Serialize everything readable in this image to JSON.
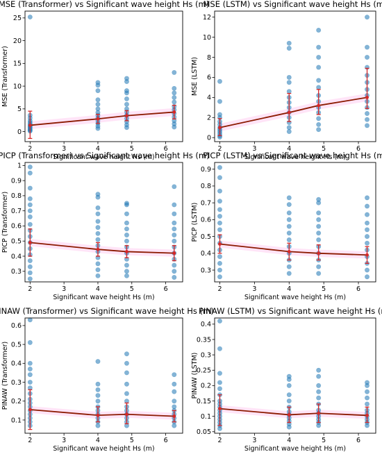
{
  "colors": {
    "points": "#1f77b4",
    "trend_line": "#8b1a00",
    "error_bars": "#d62728",
    "band": "#ff69d2",
    "axis": "#000000"
  },
  "chart_data": [
    {
      "type": "scatter",
      "title": "MSE (Transformer) vs Significant wave height Hs (m)",
      "xlabel": "Significant wave height Hs (m)",
      "ylabel": "MSE (Transformer)",
      "xlim": [
        1.85,
        6.5
      ],
      "ylim": [
        -2.2,
        26.5
      ],
      "xticks": [
        2,
        3,
        4,
        5,
        6
      ],
      "yticks": [
        0,
        5,
        10,
        15,
        20,
        25
      ],
      "points": [
        {
          "x": 2,
          "values": [
            0.1,
            0.3,
            0.5,
            0.8,
            1.0,
            1.3,
            1.6,
            2.0,
            2.4,
            3.0,
            3.6,
            25.2
          ]
        },
        {
          "x": 4,
          "values": [
            0.7,
            1.2,
            1.8,
            2.4,
            3.0,
            3.6,
            4.2,
            5.0,
            6.0,
            7.0,
            9.0,
            10.2,
            10.8
          ]
        },
        {
          "x": 4.85,
          "values": [
            0.9,
            1.5,
            2.2,
            2.9,
            3.6,
            4.3,
            5.0,
            6.0,
            7.2,
            8.5,
            9.0,
            11.0,
            11.7
          ]
        },
        {
          "x": 6.25,
          "values": [
            1.0,
            1.7,
            2.4,
            3.2,
            4.0,
            4.8,
            5.5,
            6.5,
            7.5,
            8.5,
            9.5,
            13.0
          ]
        }
      ],
      "trend": {
        "x": [
          2,
          4,
          4.85,
          6.25
        ],
        "y": [
          1.4,
          2.8,
          3.5,
          4.3
        ]
      },
      "error_bars": [
        {
          "x": 2,
          "low": -1.5,
          "high": 4.5
        },
        {
          "x": 4,
          "low": 1.8,
          "high": 3.8
        },
        {
          "x": 4.85,
          "low": 2.4,
          "high": 4.6
        },
        {
          "x": 6.25,
          "low": 2.8,
          "high": 5.8
        }
      ]
    },
    {
      "type": "scatter",
      "title": "MSE (LSTM) vs Significant wave height Hs (m)",
      "xlabel": "Significant wave height Hs (m)",
      "ylabel": "MSE (LSTM)",
      "xlim": [
        1.85,
        6.5
      ],
      "ylim": [
        -0.4,
        12.6
      ],
      "xticks": [
        2,
        3,
        4,
        5,
        6
      ],
      "yticks": [
        0,
        2,
        4,
        6,
        8,
        10,
        12
      ],
      "points": [
        {
          "x": 2,
          "values": [
            0.05,
            0.2,
            0.4,
            0.6,
            0.8,
            1.0,
            1.3,
            1.6,
            2.0,
            2.3,
            3.6,
            5.6
          ]
        },
        {
          "x": 4,
          "values": [
            0.6,
            1.0,
            1.5,
            2.0,
            2.5,
            3.0,
            3.5,
            4.0,
            4.6,
            5.5,
            6.0,
            8.9,
            9.4
          ]
        },
        {
          "x": 4.85,
          "values": [
            0.8,
            1.3,
            1.9,
            2.5,
            3.0,
            3.6,
            4.2,
            5.0,
            5.7,
            7.0,
            8.0,
            9.0,
            10.7
          ]
        },
        {
          "x": 6.25,
          "values": [
            1.2,
            1.8,
            2.4,
            3.0,
            3.6,
            4.2,
            4.8,
            5.5,
            6.2,
            7.0,
            8.0,
            9.0,
            12.0
          ]
        }
      ],
      "trend": {
        "x": [
          2,
          4,
          4.85,
          6.25
        ],
        "y": [
          1.0,
          2.5,
          3.2,
          4.0
        ]
      },
      "error_bars": [
        {
          "x": 2,
          "low": 0.2,
          "high": 1.9
        },
        {
          "x": 4,
          "low": 1.6,
          "high": 4.4
        },
        {
          "x": 4.85,
          "low": 2.3,
          "high": 4.8
        },
        {
          "x": 6.25,
          "low": 2.9,
          "high": 6.9
        }
      ]
    },
    {
      "type": "scatter",
      "title": "PICP (Transformer) vs Significant wave height Hs (m)",
      "xlabel": "Significant wave height Hs (m)",
      "ylabel": "PICP (Transformer)",
      "xlim": [
        1.85,
        6.5
      ],
      "ylim": [
        0.23,
        1.02
      ],
      "xticks": [
        2,
        3,
        4,
        5,
        6
      ],
      "yticks": [
        0.3,
        0.4,
        0.5,
        0.6,
        0.7,
        0.8,
        0.9,
        1.0
      ],
      "points": [
        {
          "x": 2,
          "values": [
            0.25,
            0.29,
            0.33,
            0.37,
            0.41,
            0.45,
            0.49,
            0.53,
            0.57,
            0.61,
            0.66,
            0.7,
            0.74,
            0.78,
            0.85,
            0.95,
            0.99
          ]
        },
        {
          "x": 4,
          "values": [
            0.27,
            0.31,
            0.35,
            0.39,
            0.43,
            0.47,
            0.51,
            0.55,
            0.59,
            0.63,
            0.68,
            0.72,
            0.79,
            0.81
          ]
        },
        {
          "x": 4.85,
          "values": [
            0.27,
            0.3,
            0.34,
            0.38,
            0.42,
            0.46,
            0.5,
            0.54,
            0.58,
            0.62,
            0.68,
            0.74,
            0.75
          ]
        },
        {
          "x": 6.25,
          "values": [
            0.26,
            0.3,
            0.34,
            0.38,
            0.42,
            0.46,
            0.5,
            0.54,
            0.58,
            0.62,
            0.68,
            0.74,
            0.86
          ]
        }
      ],
      "trend": {
        "x": [
          2,
          4,
          4.85,
          6.25
        ],
        "y": [
          0.49,
          0.445,
          0.43,
          0.42
        ]
      },
      "error_bars": [
        {
          "x": 2,
          "low": 0.4,
          "high": 0.58
        },
        {
          "x": 4,
          "low": 0.4,
          "high": 0.49
        },
        {
          "x": 4.85,
          "low": 0.39,
          "high": 0.47
        },
        {
          "x": 6.25,
          "low": 0.37,
          "high": 0.47
        }
      ]
    },
    {
      "type": "scatter",
      "title": "PICP (LSTM) vs Significant wave height Hs (m)",
      "xlabel": "Significant wave height Hs (m)",
      "ylabel": "PICP (LSTM)",
      "xlim": [
        1.85,
        6.5
      ],
      "ylim": [
        0.23,
        0.94
      ],
      "xticks": [
        2,
        3,
        4,
        5,
        6
      ],
      "yticks": [
        0.3,
        0.4,
        0.5,
        0.6,
        0.7,
        0.8,
        0.9
      ],
      "points": [
        {
          "x": 2,
          "values": [
            0.26,
            0.3,
            0.34,
            0.38,
            0.42,
            0.46,
            0.5,
            0.54,
            0.58,
            0.62,
            0.66,
            0.71,
            0.77,
            0.85,
            0.91
          ]
        },
        {
          "x": 4,
          "values": [
            0.28,
            0.32,
            0.36,
            0.4,
            0.44,
            0.48,
            0.52,
            0.56,
            0.6,
            0.64,
            0.69,
            0.73
          ]
        },
        {
          "x": 4.85,
          "values": [
            0.28,
            0.32,
            0.36,
            0.4,
            0.44,
            0.48,
            0.52,
            0.56,
            0.6,
            0.64,
            0.7,
            0.72
          ]
        },
        {
          "x": 6.25,
          "values": [
            0.26,
            0.3,
            0.34,
            0.38,
            0.42,
            0.46,
            0.5,
            0.54,
            0.58,
            0.63,
            0.68,
            0.73
          ]
        }
      ],
      "trend": {
        "x": [
          2,
          4,
          4.85,
          6.25
        ],
        "y": [
          0.455,
          0.41,
          0.4,
          0.39
        ]
      },
      "error_bars": [
        {
          "x": 2,
          "low": 0.4,
          "high": 0.51
        },
        {
          "x": 4,
          "low": 0.36,
          "high": 0.46
        },
        {
          "x": 4.85,
          "low": 0.36,
          "high": 0.45
        },
        {
          "x": 6.25,
          "low": 0.34,
          "high": 0.44
        }
      ]
    },
    {
      "type": "scatter",
      "title": "PINAW (Transformer) vs Significant wave height Hs (m)",
      "xlabel": "Significant wave height Hs (m)",
      "ylabel": "PINAW (Transformer)",
      "xlim": [
        1.85,
        6.5
      ],
      "ylim": [
        0.03,
        0.64
      ],
      "xticks": [
        2,
        3,
        4,
        5,
        6
      ],
      "yticks": [
        0.1,
        0.2,
        0.3,
        0.4,
        0.5,
        0.6
      ],
      "points": [
        {
          "x": 2,
          "values": [
            0.07,
            0.09,
            0.11,
            0.13,
            0.15,
            0.17,
            0.19,
            0.21,
            0.24,
            0.27,
            0.3,
            0.34,
            0.37,
            0.4,
            0.51,
            0.63
          ]
        },
        {
          "x": 4,
          "values": [
            0.07,
            0.09,
            0.11,
            0.13,
            0.15,
            0.17,
            0.2,
            0.23,
            0.26,
            0.29,
            0.41
          ]
        },
        {
          "x": 4.85,
          "values": [
            0.07,
            0.09,
            0.11,
            0.13,
            0.15,
            0.17,
            0.2,
            0.24,
            0.29,
            0.35,
            0.4,
            0.45
          ]
        },
        {
          "x": 6.25,
          "values": [
            0.07,
            0.09,
            0.11,
            0.13,
            0.15,
            0.17,
            0.2,
            0.25,
            0.29,
            0.34
          ]
        }
      ],
      "trend": {
        "x": [
          2,
          4,
          4.85,
          6.25
        ],
        "y": [
          0.155,
          0.125,
          0.13,
          0.12
        ]
      },
      "error_bars": [
        {
          "x": 2,
          "low": 0.05,
          "high": 0.26
        },
        {
          "x": 4,
          "low": 0.09,
          "high": 0.17
        },
        {
          "x": 4.85,
          "low": 0.08,
          "high": 0.19
        },
        {
          "x": 6.25,
          "low": 0.09,
          "high": 0.15
        }
      ]
    },
    {
      "type": "scatter",
      "title": "PINAW (LSTM) vs Significant wave height Hs (m)",
      "xlabel": "Significant wave height Hs (m)",
      "ylabel": "PINAW (LSTM)",
      "xlim": [
        1.85,
        6.5
      ],
      "ylim": [
        0.045,
        0.42
      ],
      "xticks": [
        2,
        3,
        4,
        5,
        6
      ],
      "yticks": [
        0.05,
        0.1,
        0.15,
        0.2,
        0.25,
        0.3,
        0.35,
        0.4
      ],
      "points": [
        {
          "x": 2,
          "values": [
            0.06,
            0.07,
            0.08,
            0.09,
            0.1,
            0.11,
            0.12,
            0.13,
            0.14,
            0.15,
            0.17,
            0.19,
            0.21,
            0.24,
            0.32,
            0.41
          ]
        },
        {
          "x": 4,
          "values": [
            0.065,
            0.075,
            0.085,
            0.095,
            0.105,
            0.115,
            0.13,
            0.15,
            0.17,
            0.2,
            0.22,
            0.23
          ]
        },
        {
          "x": 4.85,
          "values": [
            0.07,
            0.08,
            0.09,
            0.1,
            0.11,
            0.12,
            0.14,
            0.16,
            0.18,
            0.2,
            0.23,
            0.25
          ]
        },
        {
          "x": 6.25,
          "values": [
            0.07,
            0.08,
            0.09,
            0.1,
            0.11,
            0.12,
            0.14,
            0.16,
            0.18,
            0.2,
            0.21
          ]
        }
      ],
      "trend": {
        "x": [
          2,
          4,
          4.85,
          6.25
        ],
        "y": [
          0.125,
          0.105,
          0.11,
          0.103
        ]
      },
      "error_bars": [
        {
          "x": 2,
          "low": 0.07,
          "high": 0.17
        },
        {
          "x": 4,
          "low": 0.08,
          "high": 0.13
        },
        {
          "x": 4.85,
          "low": 0.08,
          "high": 0.14
        },
        {
          "x": 6.25,
          "low": 0.08,
          "high": 0.13
        }
      ]
    }
  ]
}
